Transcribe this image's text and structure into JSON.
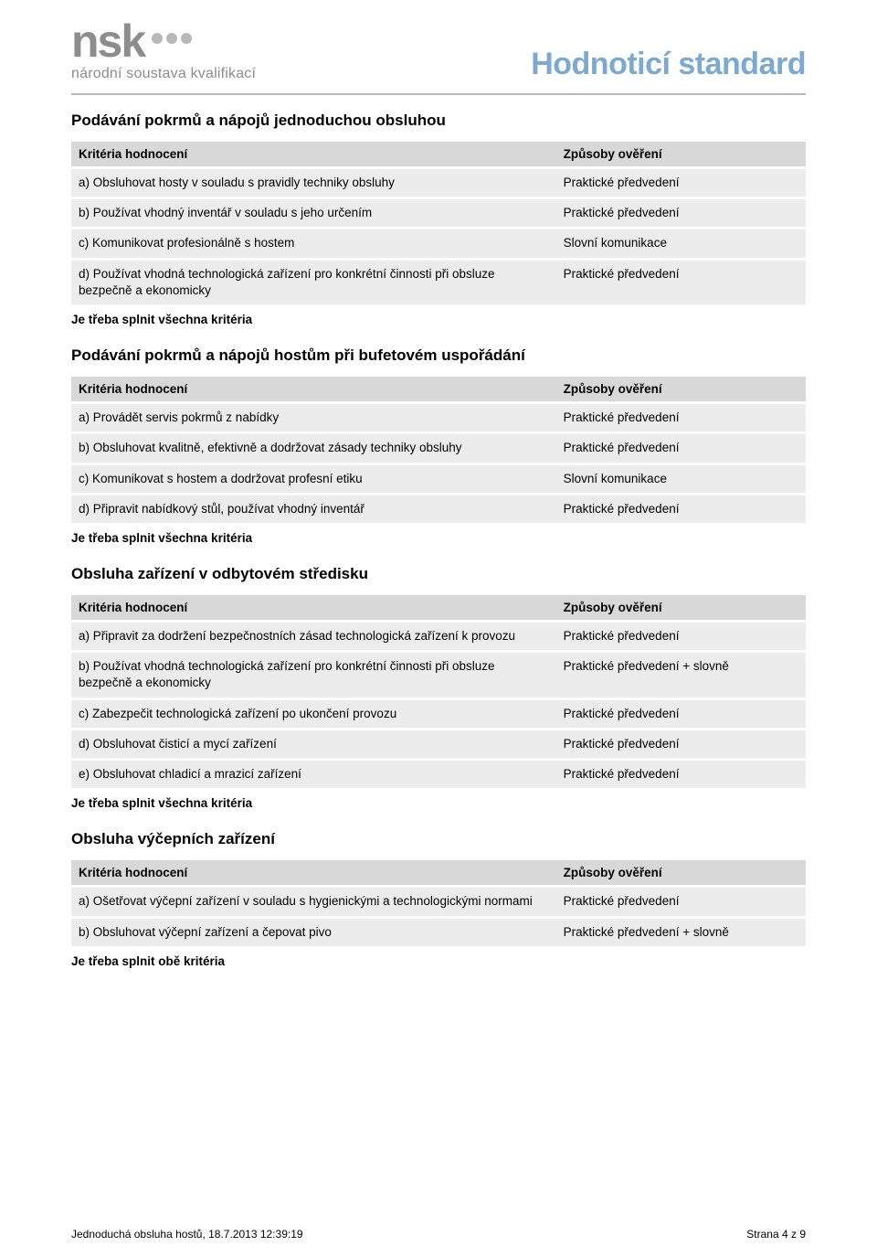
{
  "colors": {
    "title_color": "#7ca9d0",
    "logo_gray": "#8d8d8d",
    "dot_gray": "#b9b9b9",
    "rule_gray": "#b9b9b9",
    "th_bg": "#d8d8d8",
    "td_bg": "#ececec",
    "text": "#000000",
    "page_bg": "#ffffff"
  },
  "typography": {
    "page_title_fontsize": 34,
    "section_title_fontsize": 17,
    "table_fontsize": 13.5,
    "footer_fontsize": 12,
    "logo_text_fontsize": 50,
    "logo_sub_fontsize": 16
  },
  "header": {
    "logo_text": "nsk",
    "logo_sub": "národní soustava kvalifikací",
    "page_title": "Hodnoticí standard"
  },
  "table_headers": {
    "col1": "Kritéria hodnocení",
    "col2": "Způsoby ověření"
  },
  "notes": {
    "all": "Je třeba splnit všechna kritéria",
    "both": "Je třeba splnit obě kritéria"
  },
  "sections": [
    {
      "title": "Podávání pokrmů a nápojů jednoduchou obsluhou",
      "rows": [
        {
          "c": "a) Obsluhovat hosty v souladu s pravidly techniky obsluhy",
          "m": "Praktické předvedení"
        },
        {
          "c": "b) Používat vhodný inventář v souladu s jeho určením",
          "m": "Praktické předvedení"
        },
        {
          "c": "c) Komunikovat profesionálně s hostem",
          "m": "Slovní komunikace"
        },
        {
          "c": "d) Používat vhodná technologická zařízení pro konkrétní činnosti při obsluze bezpečně a ekonomicky",
          "m": "Praktické předvedení"
        }
      ],
      "note_key": "all"
    },
    {
      "title": "Podávání pokrmů a nápojů hostům při bufetovém uspořádání",
      "rows": [
        {
          "c": "a) Provádět servis pokrmů z nabídky",
          "m": "Praktické předvedení"
        },
        {
          "c": "b) Obsluhovat kvalitně, efektivně a dodržovat zásady techniky obsluhy",
          "m": "Praktické předvedení"
        },
        {
          "c": "c) Komunikovat s hostem a dodržovat profesní etiku",
          "m": "Slovní komunikace"
        },
        {
          "c": "d) Připravit nabídkový stůl, používat vhodný inventář",
          "m": "Praktické předvedení"
        }
      ],
      "note_key": "all"
    },
    {
      "title": "Obsluha zařízení v odbytovém středisku",
      "rows": [
        {
          "c": "a) Připravit za dodržení bezpečnostních zásad technologická zařízení k provozu",
          "m": "Praktické předvedení"
        },
        {
          "c": "b) Používat vhodná technologická zařízení pro konkrétní činnosti při obsluze bezpečně a ekonomicky",
          "m": "Praktické předvedení + slovně"
        },
        {
          "c": "c) Zabezpečit technologická zařízení po ukončení provozu",
          "m": "Praktické předvedení"
        },
        {
          "c": "d) Obsluhovat čisticí a mycí zařízení",
          "m": "Praktické předvedení"
        },
        {
          "c": "e) Obsluhovat chladicí a mrazicí zařízení",
          "m": "Praktické předvedení"
        }
      ],
      "note_key": "all"
    },
    {
      "title": "Obsluha výčepních zařízení",
      "rows": [
        {
          "c": "a) Ošetřovat výčepní zařízení v souladu s hygienickými a technologickými normami",
          "m": "Praktické předvedení"
        },
        {
          "c": "b) Obsluhovat výčepní zařízení a čepovat pivo",
          "m": "Praktické předvedení + slovně"
        }
      ],
      "note_key": "both"
    }
  ],
  "footer": {
    "left": "Jednoduchá obsluha hostů, 18.7.2013 12:39:19",
    "right": "Strana 4 z 9"
  }
}
